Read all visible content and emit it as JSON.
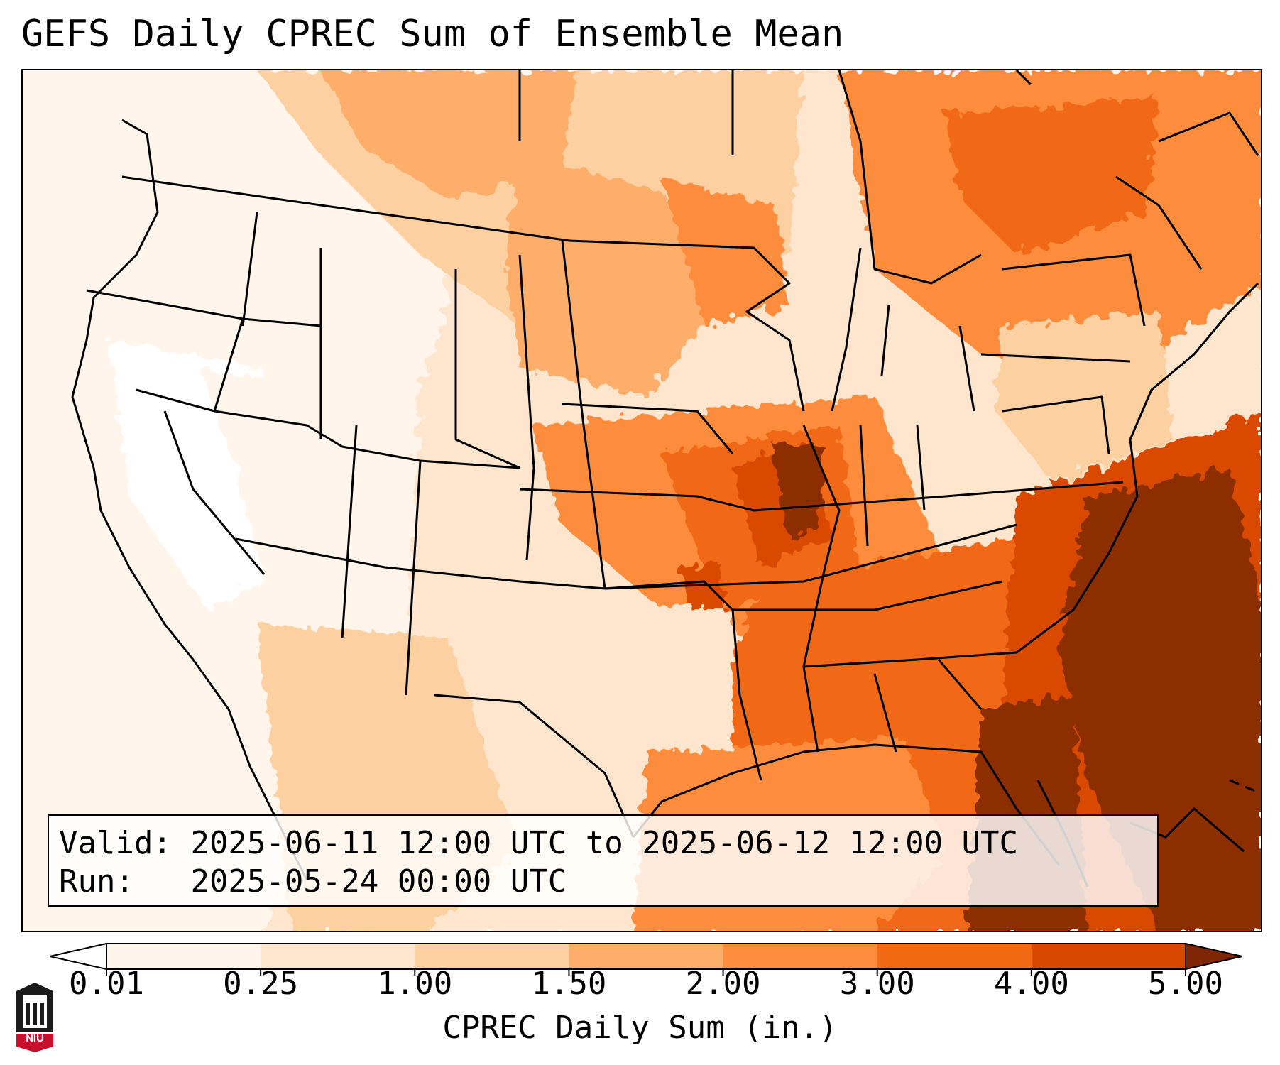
{
  "title": "GEFS Daily CPREC Sum of Ensemble Mean",
  "info": {
    "valid_label": "Valid:",
    "valid_value": "2025-06-11 12:00 UTC to 2025-06-12 12:00 UTC",
    "run_label": "Run:",
    "run_value": "2025-05-24 00:00 UTC"
  },
  "colorbar": {
    "label": "CPREC Daily Sum (in.)",
    "ticks": [
      "0.01",
      "0.25",
      "1.00",
      "1.50",
      "2.00",
      "3.00",
      "4.00",
      "5.00"
    ],
    "colors": [
      "#fff5eb",
      "#fee6ce",
      "#fdd0a2",
      "#fdae6b",
      "#fd8d3c",
      "#f16913",
      "#d94801",
      "#8c2d04"
    ],
    "under_color": "#ffffff",
    "over_color": "#7f2704"
  },
  "logo": {
    "text": "NIU",
    "colors": {
      "red": "#c8102e",
      "dark": "#1a1a1a"
    }
  }
}
